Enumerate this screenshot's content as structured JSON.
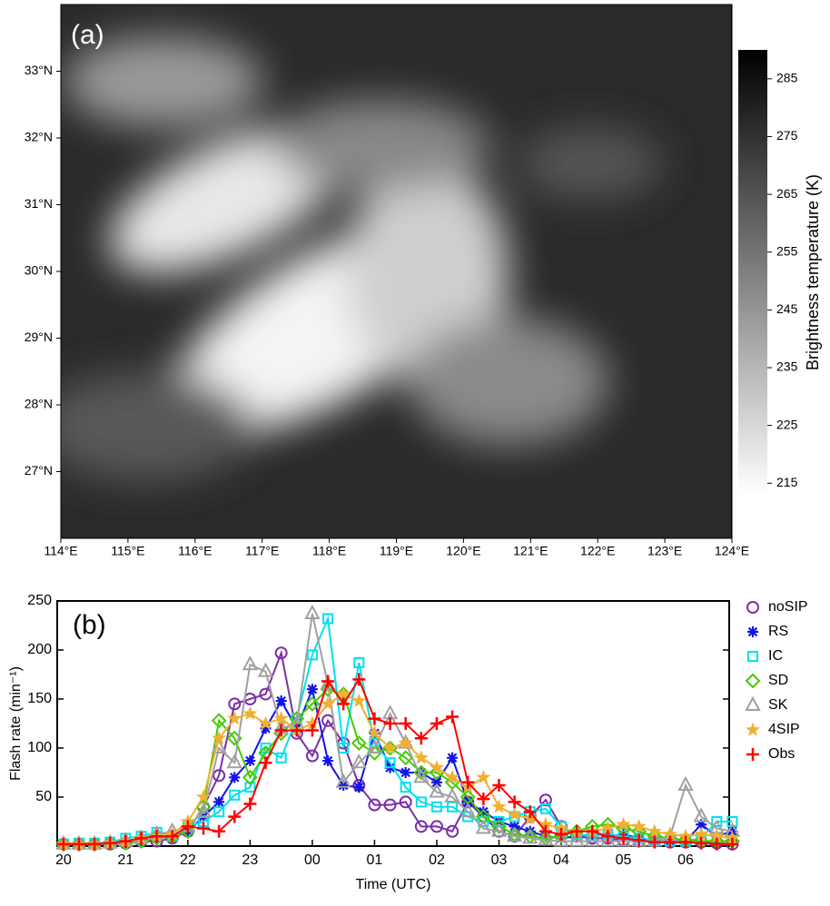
{
  "chart_data": [
    {
      "type": "image",
      "label": "(a)",
      "xlim": [
        114,
        124
      ],
      "xticks": [
        {
          "value": 114,
          "label": "114°E"
        },
        {
          "value": 115,
          "label": "115°E"
        },
        {
          "value": 116,
          "label": "116°E"
        },
        {
          "value": 117,
          "label": "117°E"
        },
        {
          "value": 118,
          "label": "118°E"
        },
        {
          "value": 119,
          "label": "119°E"
        },
        {
          "value": 120,
          "label": "120°E"
        },
        {
          "value": 121,
          "label": "121°E"
        },
        {
          "value": 122,
          "label": "122°E"
        },
        {
          "value": 123,
          "label": "123°E"
        },
        {
          "value": 124,
          "label": "124°E"
        }
      ],
      "ylim": [
        26,
        34
      ],
      "yticks": [
        {
          "value": 27,
          "label": "27°N"
        },
        {
          "value": 28,
          "label": "28°N"
        },
        {
          "value": 29,
          "label": "29°N"
        },
        {
          "value": 30,
          "label": "30°N"
        },
        {
          "value": 31,
          "label": "31°N"
        },
        {
          "value": 32,
          "label": "32°N"
        },
        {
          "value": 33,
          "label": "33°N"
        }
      ],
      "colorbar": {
        "label": "Brightness temperature (K)",
        "lim": [
          213,
          290
        ],
        "ticks": [
          215,
          225,
          235,
          245,
          255,
          265,
          275,
          285
        ]
      }
    },
    {
      "type": "line",
      "label": "(b)",
      "xlabel": "Time (UTC)",
      "ylabel": "Flash rate (min⁻¹)",
      "xlim": [
        -0.1,
        10.7
      ],
      "xticks": [
        {
          "value": 0,
          "label": "20"
        },
        {
          "value": 1,
          "label": "21"
        },
        {
          "value": 2,
          "label": "22"
        },
        {
          "value": 3,
          "label": "23"
        },
        {
          "value": 4,
          "label": "00"
        },
        {
          "value": 5,
          "label": "01"
        },
        {
          "value": 6,
          "label": "02"
        },
        {
          "value": 7,
          "label": "03"
        },
        {
          "value": 8,
          "label": "04"
        },
        {
          "value": 9,
          "label": "05"
        },
        {
          "value": 10,
          "label": "06"
        }
      ],
      "ylim": [
        0,
        250
      ],
      "yticks": [
        50,
        100,
        150,
        200,
        250
      ],
      "x": [
        0,
        0.25,
        0.5,
        0.75,
        1,
        1.25,
        1.5,
        1.75,
        2,
        2.25,
        2.5,
        2.75,
        3,
        3.25,
        3.5,
        3.75,
        4,
        4.25,
        4.5,
        4.75,
        5,
        5.25,
        5.5,
        5.75,
        6,
        6.25,
        6.5,
        6.75,
        7,
        7.25,
        7.5,
        7.75,
        8,
        8.25,
        8.5,
        8.75,
        9,
        9.25,
        9.5,
        9.75,
        10,
        10.25,
        10.5,
        10.75
      ],
      "series": [
        {
          "name": "noSIP",
          "color": "#7b2fa8",
          "marker": "circle",
          "values": [
            2,
            2,
            2,
            2,
            3,
            5,
            5,
            8,
            15,
            40,
            72,
            145,
            150,
            155,
            197,
            115,
            92,
            128,
            105,
            62,
            42,
            42,
            45,
            20,
            20,
            15,
            45,
            30,
            15,
            10,
            30,
            47,
            20,
            10,
            8,
            8,
            6,
            5,
            5,
            4,
            4,
            4,
            3,
            2
          ]
        },
        {
          "name": "RS",
          "color": "#1414e6",
          "marker": "asterisk",
          "values": [
            2,
            2,
            2,
            2,
            3,
            5,
            8,
            10,
            15,
            30,
            45,
            70,
            87,
            120,
            148,
            120,
            160,
            87,
            62,
            60,
            115,
            80,
            75,
            75,
            65,
            90,
            45,
            35,
            25,
            20,
            15,
            10,
            8,
            10,
            12,
            10,
            12,
            8,
            6,
            5,
            5,
            22,
            10,
            15
          ]
        },
        {
          "name": "IC",
          "color": "#00e0f0",
          "marker": "square",
          "values": [
            2,
            3,
            3,
            4,
            8,
            10,
            14,
            10,
            20,
            25,
            35,
            52,
            60,
            100,
            90,
            130,
            195,
            232,
            100,
            187,
            105,
            85,
            60,
            45,
            40,
            40,
            30,
            25,
            25,
            30,
            35,
            38,
            20,
            12,
            10,
            12,
            10,
            8,
            6,
            5,
            5,
            8,
            25,
            25
          ]
        },
        {
          "name": "SD",
          "color": "#44cc00",
          "marker": "diamond",
          "values": [
            2,
            2,
            2,
            3,
            3,
            5,
            8,
            10,
            15,
            40,
            128,
            110,
            70,
            95,
            115,
            130,
            145,
            160,
            155,
            105,
            95,
            100,
            90,
            75,
            75,
            65,
            50,
            30,
            20,
            12,
            10,
            8,
            10,
            15,
            20,
            22,
            18,
            15,
            10,
            8,
            6,
            5,
            5,
            5
          ]
        },
        {
          "name": "SK",
          "color": "#a0a0a0",
          "marker": "triangle",
          "values": [
            2,
            2,
            2,
            3,
            5,
            8,
            12,
            15,
            20,
            35,
            100,
            85,
            185,
            178,
            120,
            125,
            237,
            165,
            65,
            85,
            100,
            135,
            105,
            70,
            55,
            50,
            35,
            18,
            15,
            10,
            8,
            6,
            5,
            5,
            5,
            5,
            5,
            5,
            5,
            10,
            62,
            30,
            18,
            15
          ]
        },
        {
          "name": "4SIP",
          "color": "#f0b030",
          "marker": "star",
          "values": [
            2,
            2,
            2,
            3,
            5,
            8,
            10,
            12,
            25,
            50,
            110,
            130,
            135,
            125,
            130,
            118,
            125,
            145,
            155,
            148,
            115,
            100,
            105,
            90,
            80,
            70,
            60,
            70,
            40,
            32,
            28,
            22,
            18,
            15,
            15,
            18,
            22,
            20,
            15,
            12,
            10,
            12,
            10,
            8
          ]
        },
        {
          "name": "Obs",
          "color": "#ff0000",
          "marker": "plus",
          "values": [
            2,
            2,
            2,
            3,
            5,
            8,
            10,
            10,
            20,
            18,
            15,
            30,
            43,
            85,
            118,
            118,
            118,
            168,
            145,
            170,
            130,
            125,
            125,
            110,
            125,
            132,
            65,
            48,
            62,
            45,
            35,
            15,
            12,
            15,
            15,
            10,
            8,
            6,
            4,
            4,
            4,
            3,
            2,
            2
          ]
        }
      ]
    }
  ]
}
